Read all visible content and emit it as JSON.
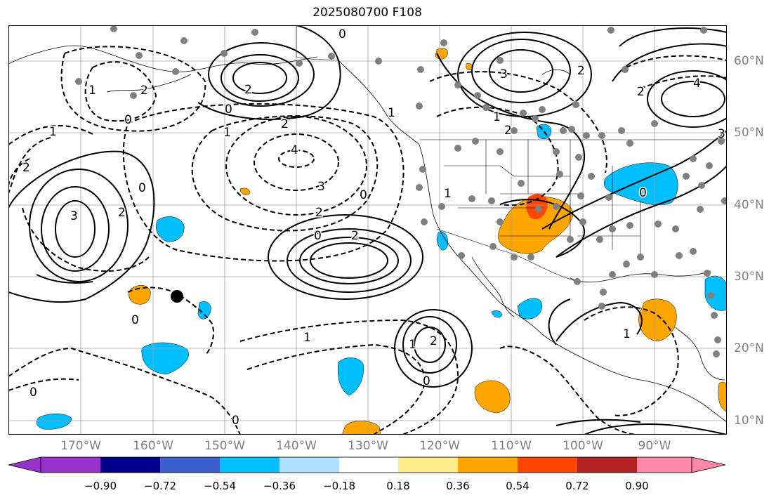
{
  "title": "2025080700 F108",
  "lat_labels": [
    "60°N",
    "50°N",
    "40°N",
    "30°N",
    "20°N",
    "10°N"
  ],
  "lon_labels": [
    "170°W",
    "160°W",
    "150°W",
    "140°W",
    "130°W",
    "120°W",
    "110°W",
    "100°W",
    "90°W"
  ],
  "colorbar": {
    "ticks": [
      "−0.90",
      "−0.72",
      "−0.54",
      "−0.36",
      "−0.18",
      "0.18",
      "0.36",
      "0.54",
      "0.72",
      "0.90"
    ],
    "colors": [
      "#9932cc",
      "#00008b",
      "#3a5fcd",
      "#00bfff",
      "#b0e2ff",
      "#ffffff",
      "#ffec8b",
      "#ffa500",
      "#ff4500",
      "#b22222",
      "#ff88aa"
    ]
  },
  "contour_labels": [
    "0",
    "0",
    "0",
    "0",
    "0",
    "0",
    "0",
    "0",
    "0",
    "0",
    "0",
    "1",
    "1",
    "1",
    "1",
    "1",
    "1",
    "1",
    "2",
    "2",
    "2",
    "2",
    "2",
    "2",
    "2",
    "2",
    "2",
    "3",
    "3",
    "3",
    "3",
    "4",
    "4",
    "2",
    "1",
    "1",
    "2"
  ],
  "colors": {
    "positive_shade": "#ffa500",
    "negative_shade": "#00bfff",
    "strong_positive": "#ff4500",
    "contour": "#000000",
    "grid": "#a0a0a0",
    "station": "#808080"
  }
}
